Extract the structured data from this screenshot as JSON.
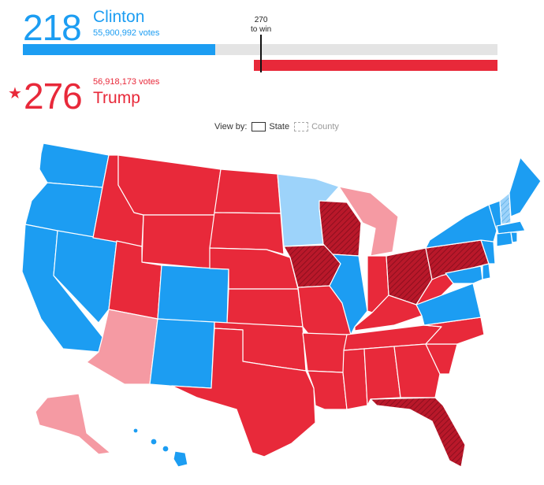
{
  "clinton": {
    "count": "218",
    "name": "Clinton",
    "votes": "55,900,992 votes",
    "electoral": 218,
    "color": "#1c9df2"
  },
  "trump": {
    "count": "276",
    "name": "Trump",
    "votes": "56,918,173 votes",
    "electoral": 276,
    "color": "#e8293a",
    "winner_mark": "★"
  },
  "threshold": {
    "value": "270",
    "label": "to win",
    "total": 538
  },
  "viewby": {
    "label": "View by:",
    "state": "State",
    "county": "County",
    "selected": "State"
  },
  "legend_colors": {
    "dem_won": "#1c9df2",
    "dem_lead": "#9dd3fa",
    "rep_won": "#e8293a",
    "rep_lead": "#f59aa3",
    "flipped": "#b9182a"
  }
}
